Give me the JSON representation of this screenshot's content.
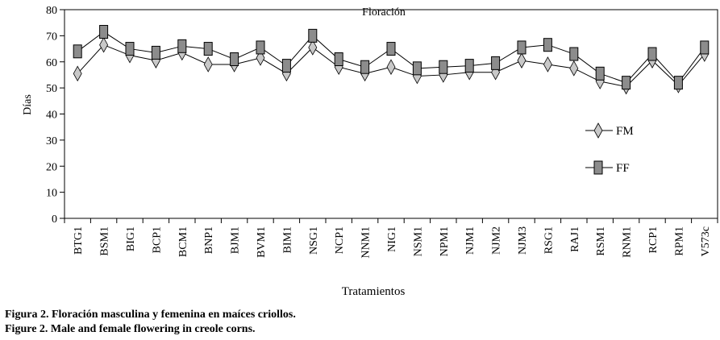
{
  "chart_data": {
    "type": "line",
    "title": "Floración",
    "xlabel": "Tratamientos",
    "ylabel": "Días",
    "ylim": [
      0,
      80
    ],
    "yticks": [
      0,
      10,
      20,
      30,
      40,
      50,
      60,
      70,
      80
    ],
    "grid": false,
    "legend_position": "right",
    "categories": [
      "BTG1",
      "BSM1",
      "BIG1",
      "BCP1",
      "BCM1",
      "BNP1",
      "BJM1",
      "BVM1",
      "BIM1",
      "NSG1",
      "NCP1",
      "NNM1",
      "NIG1",
      "NSM1",
      "NPM1",
      "NJM1",
      "NJM2",
      "NJM3",
      "RSG1",
      "RAJ1",
      "RSM1",
      "RNM1",
      "RCP1",
      "RPM1",
      "V573c"
    ],
    "series": [
      {
        "name": "FM",
        "marker": "diamond",
        "color": "#c8c8c8",
        "values": [
          55.5,
          66.5,
          62.5,
          60.5,
          63.5,
          59,
          59,
          61.5,
          55.5,
          65.5,
          58,
          55.5,
          58,
          54.5,
          55,
          56,
          56,
          60.5,
          59,
          57.5,
          52.5,
          50.5,
          60.5,
          51,
          63
        ]
      },
      {
        "name": "FF",
        "marker": "square",
        "color": "#8c8c8c",
        "values": [
          64,
          71.5,
          65,
          63.5,
          66,
          65,
          61,
          65.5,
          58.5,
          70,
          61,
          58,
          65,
          57.5,
          58,
          58.5,
          59.5,
          65.5,
          66.5,
          63,
          55.5,
          52,
          63,
          52,
          65.5
        ]
      }
    ]
  },
  "captions": {
    "es": "Figura 2. Floración masculina y femenina en maíces criollos.",
    "en": "Figure 2. Male and female flowering in creole corns."
  }
}
